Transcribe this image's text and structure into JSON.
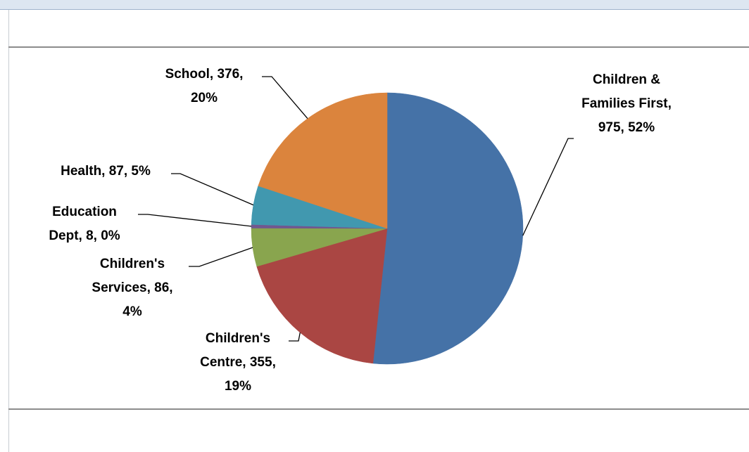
{
  "chart_data": {
    "type": "pie",
    "title": "",
    "slices": [
      {
        "label": "Children & Families First",
        "value": 975,
        "percent": "52%",
        "color": "#4572a7"
      },
      {
        "label": "Children's Centre",
        "value": 355,
        "percent": "19%",
        "color": "#aa4643"
      },
      {
        "label": "Children's Services",
        "value": 86,
        "percent": "4%",
        "color": "#89a54e"
      },
      {
        "label": "Education Dept",
        "value": 8,
        "percent": "0%",
        "color": "#71588f"
      },
      {
        "label": "Health",
        "value": 87,
        "percent": "5%",
        "color": "#4198af"
      },
      {
        "label": "School",
        "value": 376,
        "percent": "20%",
        "color": "#db843d"
      }
    ],
    "data_labels": [
      [
        "Children &",
        "Families First,",
        "975, 52%"
      ],
      [
        "Children's",
        "Centre, 355,",
        "19%"
      ],
      [
        "Children's",
        "Services, 86,",
        "4%"
      ],
      [
        "Education",
        "Dept, 8, 0%"
      ],
      [
        "Health, 87, 5%"
      ],
      [
        "School, 376,",
        "20%"
      ]
    ],
    "legend": "none",
    "start_angle": "12 o'clock, clockwise"
  }
}
